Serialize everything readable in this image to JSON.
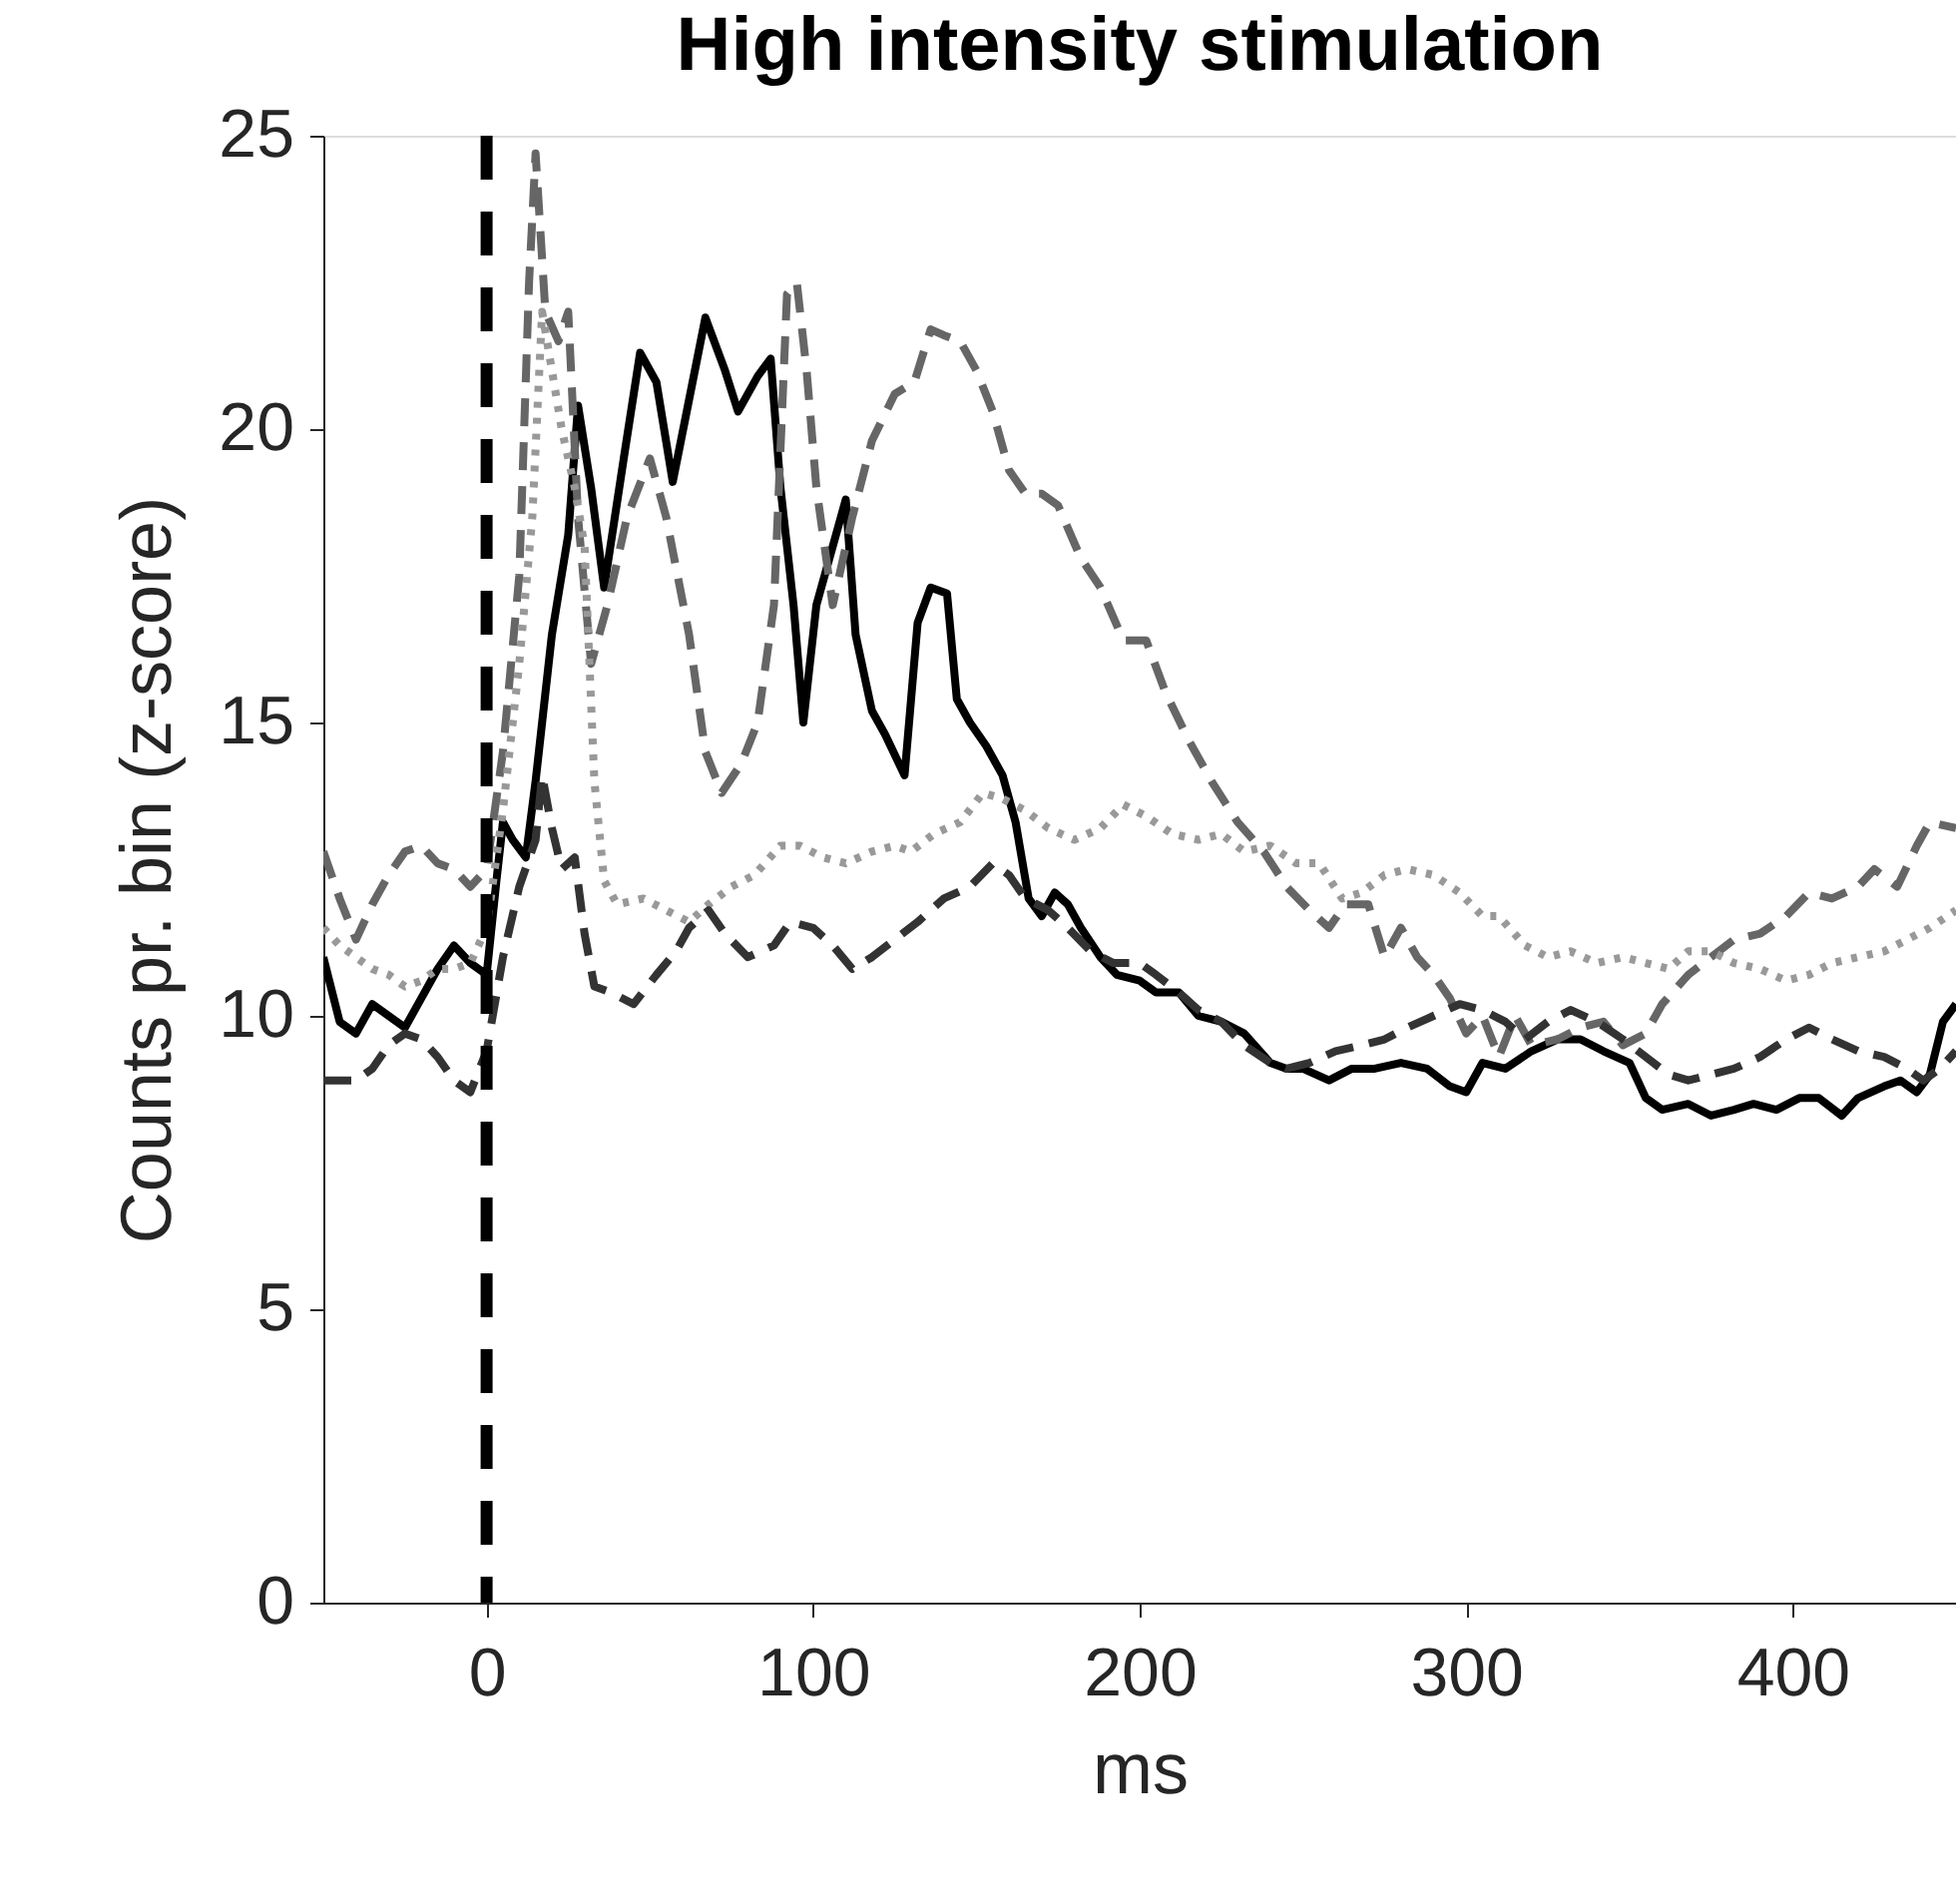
{
  "chart_data": {
    "type": "line",
    "title": "High intensity stimulation",
    "xlabel": "ms",
    "ylabel": "Counts pr. bin (z-score)",
    "xlim": [
      -50,
      450
    ],
    "xticks": [
      0,
      100,
      200,
      300,
      400
    ],
    "ylim": [
      0,
      25
    ],
    "yticks": [
      0,
      5,
      10,
      15,
      20,
      25
    ],
    "grid": false,
    "ref_lines": [
      {
        "axis": "x",
        "value": 0,
        "color": "#000000",
        "line_style": "dashed"
      }
    ],
    "series": [
      {
        "color": "#000000",
        "line_style": "solid",
        "x": [
          -50,
          -45,
          -40,
          -35,
          -30,
          -25,
          -20,
          -15,
          -10,
          -5,
          0,
          3,
          5,
          8,
          12,
          15,
          20,
          25,
          28,
          32,
          36,
          42,
          47,
          52,
          57,
          62,
          67,
          73,
          77,
          83,
          87,
          90,
          94,
          97,
          101,
          106,
          110,
          113,
          118,
          122,
          128,
          132,
          136,
          141,
          144,
          148,
          153,
          158,
          162,
          166,
          170,
          174,
          178,
          182,
          188,
          193,
          200,
          205,
          212,
          218,
          225,
          232,
          240,
          245,
          250,
          258,
          265,
          272,
          280,
          288,
          295,
          300,
          305,
          312,
          320,
          328,
          335,
          342,
          350,
          355,
          360,
          368,
          375,
          382,
          388,
          395,
          402,
          408,
          415,
          420,
          428,
          433,
          438,
          442,
          446,
          450
        ],
        "values": [
          11,
          9.9,
          9.7,
          10.2,
          10.0,
          9.8,
          10.3,
          10.8,
          11.2,
          10.9,
          10.7,
          12.3,
          13.3,
          13.0,
          12.7,
          14.0,
          16.5,
          18.2,
          20.4,
          19.0,
          17.3,
          19.5,
          21.3,
          20.8,
          19.1,
          20.5,
          21.9,
          21.0,
          20.3,
          20.9,
          21.2,
          19.0,
          17.0,
          15.0,
          17.0,
          18.0,
          18.8,
          16.5,
          15.2,
          14.8,
          14.1,
          16.7,
          17.3,
          17.2,
          15.4,
          15.0,
          14.6,
          14.1,
          13.3,
          12.0,
          11.7,
          12.1,
          11.9,
          11.5,
          11.0,
          10.7,
          10.6,
          10.4,
          10.4,
          10.0,
          9.9,
          9.7,
          9.2,
          9.1,
          9.1,
          8.9,
          9.1,
          9.1,
          9.2,
          9.1,
          8.8,
          8.7,
          9.2,
          9.1,
          9.4,
          9.6,
          9.6,
          9.4,
          9.2,
          8.6,
          8.4,
          8.5,
          8.3,
          8.4,
          8.5,
          8.4,
          8.6,
          8.6,
          8.3,
          8.6,
          8.8,
          8.9,
          8.7,
          9.0,
          9.9,
          10.2
        ]
      },
      {
        "color": "#666666",
        "line_style": "dashed",
        "x": [
          -50,
          -45,
          -40,
          -35,
          -30,
          -25,
          -20,
          -15,
          -10,
          -5,
          0,
          5,
          10,
          13,
          15,
          18,
          22,
          25,
          28,
          32,
          37,
          43,
          50,
          55,
          62,
          67,
          72,
          78,
          83,
          88,
          92,
          95,
          98,
          101,
          106,
          112,
          118,
          125,
          131,
          136,
          140,
          145,
          150,
          155,
          160,
          165,
          170,
          175,
          182,
          188,
          195,
          202,
          208,
          215,
          222,
          230,
          238,
          245,
          252,
          258,
          263,
          270,
          275,
          280,
          285,
          290,
          295,
          300,
          305,
          310,
          315,
          320,
          328,
          335,
          342,
          348,
          355,
          360,
          368,
          375,
          382,
          390,
          398,
          405,
          412,
          420,
          425,
          432,
          438,
          442,
          450
        ],
        "values": [
          12.8,
          12.0,
          11.3,
          11.9,
          12.4,
          12.8,
          12.9,
          12.6,
          12.5,
          12.2,
          12.5,
          14.5,
          17.5,
          22.5,
          24.7,
          22.0,
          21.5,
          22.0,
          18.5,
          16.0,
          17.0,
          18.5,
          19.5,
          18.5,
          16.5,
          14.5,
          13.8,
          14.3,
          15.0,
          17.0,
          22.3,
          22.5,
          21.0,
          19.0,
          17.0,
          18.5,
          19.8,
          20.6,
          20.8,
          21.7,
          21.6,
          21.5,
          21.0,
          20.3,
          19.3,
          18.9,
          18.9,
          18.7,
          17.8,
          17.3,
          16.4,
          16.4,
          15.5,
          14.7,
          14.0,
          13.3,
          12.8,
          12.2,
          11.8,
          11.5,
          11.9,
          11.9,
          11.0,
          11.5,
          11.0,
          10.7,
          10.3,
          9.7,
          10.0,
          9.3,
          10.0,
          9.5,
          9.6,
          9.8,
          9.9,
          9.5,
          9.7,
          10.2,
          10.7,
          11.0,
          11.3,
          11.4,
          11.7,
          12.1,
          12.0,
          12.2,
          12.5,
          12.2,
          12.9,
          13.3,
          13.2
        ]
      },
      {
        "color": "#999999",
        "line_style": "dotted",
        "x": [
          -50,
          -45,
          -40,
          -35,
          -30,
          -25,
          -20,
          -15,
          -10,
          -5,
          0,
          5,
          10,
          14,
          17,
          20,
          23,
          27,
          30,
          33,
          36,
          40,
          48,
          55,
          62,
          68,
          75,
          82,
          90,
          96,
          103,
          110,
          118,
          125,
          130,
          137,
          145,
          152,
          158,
          165,
          172,
          180,
          188,
          195,
          202,
          210,
          218,
          225,
          232,
          240,
          248,
          255,
          262,
          268,
          275,
          282,
          290,
          298,
          305,
          310,
          318,
          325,
          332,
          340,
          348,
          355,
          362,
          368,
          375,
          382,
          390,
          398,
          405,
          412,
          420,
          428,
          435,
          442,
          450
        ],
        "values": [
          11.5,
          11.2,
          11.0,
          10.8,
          10.7,
          10.5,
          10.6,
          10.8,
          10.8,
          10.9,
          11.5,
          13.5,
          16.0,
          18.5,
          22.0,
          21.0,
          20.0,
          19.0,
          18.0,
          14.0,
          12.3,
          11.9,
          12.0,
          11.8,
          11.6,
          11.9,
          12.2,
          12.4,
          12.9,
          12.9,
          12.7,
          12.6,
          12.8,
          12.9,
          12.8,
          13.1,
          13.3,
          13.8,
          13.7,
          13.5,
          13.2,
          13.0,
          13.2,
          13.6,
          13.4,
          13.1,
          13.0,
          13.1,
          12.8,
          12.9,
          12.6,
          12.6,
          12.0,
          12.1,
          12.4,
          12.5,
          12.4,
          12.1,
          11.7,
          11.7,
          11.2,
          11.0,
          11.1,
          10.9,
          11.0,
          10.9,
          10.8,
          11.1,
          11.1,
          10.9,
          10.8,
          10.6,
          10.7,
          10.9,
          11.0,
          11.1,
          11.3,
          11.5,
          11.8
        ]
      },
      {
        "color": "#333333",
        "line_style": "dashed",
        "x": [
          -50,
          -45,
          -40,
          -35,
          -30,
          -25,
          -20,
          -15,
          -10,
          -5,
          0,
          5,
          10,
          15,
          17,
          20,
          23,
          27,
          30,
          33,
          38,
          45,
          52,
          58,
          62,
          68,
          73,
          80,
          88,
          93,
          100,
          106,
          112,
          118,
          125,
          132,
          140,
          148,
          155,
          160,
          165,
          172,
          178,
          185,
          192,
          200,
          205,
          212,
          218,
          225,
          232,
          240,
          245,
          252,
          260,
          268,
          275,
          282,
          290,
          298,
          305,
          312,
          318,
          325,
          332,
          340,
          348,
          355,
          362,
          368,
          375,
          382,
          390,
          398,
          405,
          412,
          420,
          428,
          435,
          440,
          445,
          450
        ],
        "values": [
          8.9,
          8.9,
          8.9,
          9.1,
          9.5,
          9.7,
          9.6,
          9.3,
          8.9,
          8.7,
          9.4,
          11.0,
          12.2,
          13.0,
          14.1,
          13.2,
          12.5,
          12.7,
          11.4,
          10.5,
          10.4,
          10.2,
          10.7,
          11.1,
          11.5,
          11.8,
          11.4,
          11.0,
          11.2,
          11.6,
          11.5,
          11.2,
          10.8,
          11.0,
          11.3,
          11.6,
          12.0,
          12.2,
          12.6,
          12.4,
          12.0,
          11.8,
          11.5,
          11.1,
          10.9,
          10.9,
          10.7,
          10.4,
          10.1,
          9.9,
          9.5,
          9.2,
          9.1,
          9.2,
          9.4,
          9.5,
          9.6,
          9.8,
          10.0,
          10.2,
          10.1,
          9.9,
          9.6,
          9.9,
          10.1,
          9.9,
          9.6,
          9.3,
          9.0,
          8.9,
          9.0,
          9.1,
          9.3,
          9.6,
          9.8,
          9.6,
          9.4,
          9.3,
          9.1,
          8.9,
          9.1,
          9.4
        ]
      }
    ]
  }
}
